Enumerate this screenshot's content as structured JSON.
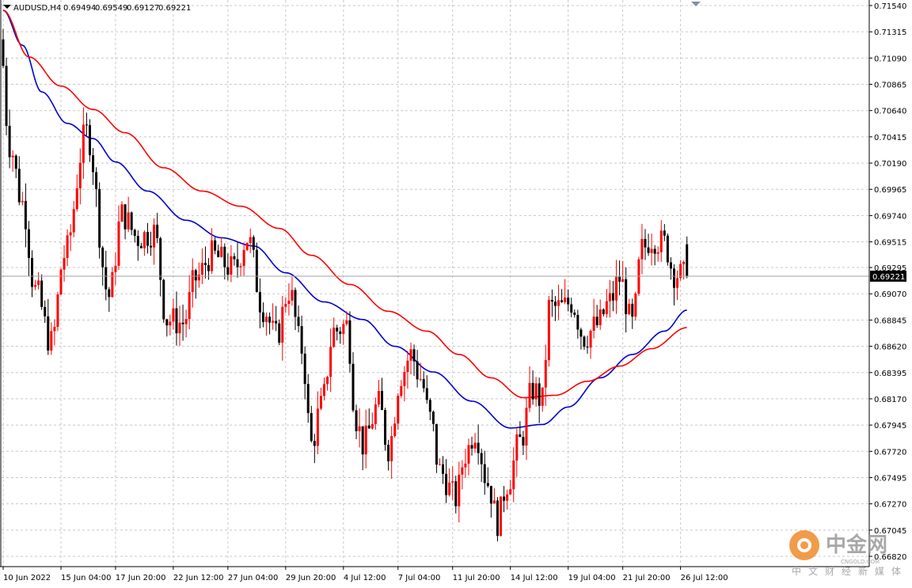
{
  "header": {
    "symbol": "AUDUSD,H4",
    "open": "0.69494",
    "high": "0.69549",
    "low": "0.69127",
    "close": "0.69221"
  },
  "watermark": {
    "cn_name": "中金网",
    "domain": "CNGOLD.COM",
    "slogan": "中文财经新媒体"
  },
  "colors": {
    "bull_candle": "#ff0000",
    "bear_candle": "#000000",
    "ma_fast": "#0000cd",
    "ma_slow": "#ff0000",
    "grid": "#c8c8c8",
    "current_price_box": "#000000"
  },
  "chart_data": {
    "type": "candlestick",
    "timeframe": "H4",
    "current_price": 0.69221,
    "ylim": [
      0.6676,
      0.7154
    ],
    "grid": true,
    "y_ticks": [
      "0.71540",
      "0.71315",
      "0.71090",
      "0.70865",
      "0.70640",
      "0.70415",
      "0.70190",
      "0.69965",
      "0.69740",
      "0.69515",
      "0.69295",
      "0.69070",
      "0.68845",
      "0.68620",
      "0.68395",
      "0.68170",
      "0.67945",
      "0.67720",
      "0.67495",
      "0.67270",
      "0.67045",
      "0.66820"
    ],
    "x_ticks": [
      {
        "bar": 0,
        "label": "10 Jun 2022"
      },
      {
        "bar": 18,
        "label": "15 Jun 04:00"
      },
      {
        "bar": 35,
        "label": "17 Jun 20:00"
      },
      {
        "bar": 53,
        "label": "22 Jun 12:00"
      },
      {
        "bar": 70,
        "label": "27 Jun 04:00"
      },
      {
        "bar": 88,
        "label": "29 Jun 20:00"
      },
      {
        "bar": 106,
        "label": "4 Jul 12:00"
      },
      {
        "bar": 123,
        "label": "7 Jul 04:00"
      },
      {
        "bar": 140,
        "label": "11 Jul 20:00"
      },
      {
        "bar": 158,
        "label": "14 Jul 12:00"
      },
      {
        "bar": 176,
        "label": "19 Jul 04:00"
      },
      {
        "bar": 193,
        "label": "21 Jul 20:00"
      },
      {
        "bar": 211,
        "label": "26 Jul 12:00"
      }
    ],
    "candle_pivots": [
      {
        "bar": 0,
        "price": 0.7125
      },
      {
        "bar": 3,
        "price": 0.7035
      },
      {
        "bar": 7,
        "price": 0.6985
      },
      {
        "bar": 11,
        "price": 0.691
      },
      {
        "bar": 16,
        "price": 0.6865
      },
      {
        "bar": 20,
        "price": 0.694
      },
      {
        "bar": 27,
        "price": 0.7045
      },
      {
        "bar": 34,
        "price": 0.6905
      },
      {
        "bar": 38,
        "price": 0.6975
      },
      {
        "bar": 43,
        "price": 0.6955
      },
      {
        "bar": 48,
        "price": 0.696
      },
      {
        "bar": 52,
        "price": 0.6885
      },
      {
        "bar": 57,
        "price": 0.6882
      },
      {
        "bar": 61,
        "price": 0.692
      },
      {
        "bar": 66,
        "price": 0.694
      },
      {
        "bar": 73,
        "price": 0.6928
      },
      {
        "bar": 77,
        "price": 0.6955
      },
      {
        "bar": 82,
        "price": 0.6895
      },
      {
        "bar": 86,
        "price": 0.687
      },
      {
        "bar": 90,
        "price": 0.691
      },
      {
        "bar": 94,
        "price": 0.686
      },
      {
        "bar": 97,
        "price": 0.6778
      },
      {
        "bar": 100,
        "price": 0.681
      },
      {
        "bar": 104,
        "price": 0.6875
      },
      {
        "bar": 108,
        "price": 0.688
      },
      {
        "bar": 111,
        "price": 0.68
      },
      {
        "bar": 113,
        "price": 0.6778
      },
      {
        "bar": 118,
        "price": 0.6812
      },
      {
        "bar": 121,
        "price": 0.6775
      },
      {
        "bar": 125,
        "price": 0.6838
      },
      {
        "bar": 128,
        "price": 0.6855
      },
      {
        "bar": 131,
        "price": 0.6835
      },
      {
        "bar": 134,
        "price": 0.68
      },
      {
        "bar": 137,
        "price": 0.6755
      },
      {
        "bar": 142,
        "price": 0.6732
      },
      {
        "bar": 145,
        "price": 0.677
      },
      {
        "bar": 148,
        "price": 0.679
      },
      {
        "bar": 152,
        "price": 0.6745
      },
      {
        "bar": 155,
        "price": 0.6712
      },
      {
        "bar": 158,
        "price": 0.6745
      },
      {
        "bar": 162,
        "price": 0.678
      },
      {
        "bar": 166,
        "price": 0.6825
      },
      {
        "bar": 169,
        "price": 0.6815
      },
      {
        "bar": 171,
        "price": 0.6895
      },
      {
        "bar": 175,
        "price": 0.6895
      },
      {
        "bar": 178,
        "price": 0.69
      },
      {
        "bar": 182,
        "price": 0.687
      },
      {
        "bar": 186,
        "price": 0.688
      },
      {
        "bar": 190,
        "price": 0.69
      },
      {
        "bar": 193,
        "price": 0.692
      },
      {
        "bar": 197,
        "price": 0.688
      },
      {
        "bar": 200,
        "price": 0.6945
      },
      {
        "bar": 203,
        "price": 0.6955
      },
      {
        "bar": 207,
        "price": 0.695
      },
      {
        "bar": 210,
        "price": 0.6925
      },
      {
        "bar": 213,
        "price": 0.6922
      }
    ],
    "series": [
      {
        "kind": "moving-average",
        "color": "#0000cd",
        "points": [
          {
            "bar": 0,
            "price": 0.715
          },
          {
            "bar": 6,
            "price": 0.712
          },
          {
            "bar": 12,
            "price": 0.708
          },
          {
            "bar": 20,
            "price": 0.7053
          },
          {
            "bar": 28,
            "price": 0.704
          },
          {
            "bar": 35,
            "price": 0.702
          },
          {
            "bar": 45,
            "price": 0.6995
          },
          {
            "bar": 57,
            "price": 0.697
          },
          {
            "bar": 68,
            "price": 0.6955
          },
          {
            "bar": 78,
            "price": 0.6948
          },
          {
            "bar": 88,
            "price": 0.6925
          },
          {
            "bar": 100,
            "price": 0.69
          },
          {
            "bar": 112,
            "price": 0.6885
          },
          {
            "bar": 122,
            "price": 0.6862
          },
          {
            "bar": 134,
            "price": 0.684
          },
          {
            "bar": 146,
            "price": 0.6815
          },
          {
            "bar": 158,
            "price": 0.6792
          },
          {
            "bar": 168,
            "price": 0.6795
          },
          {
            "bar": 176,
            "price": 0.681
          },
          {
            "bar": 186,
            "price": 0.6835
          },
          {
            "bar": 196,
            "price": 0.6855
          },
          {
            "bar": 206,
            "price": 0.6875
          },
          {
            "bar": 213,
            "price": 0.6893
          }
        ]
      },
      {
        "kind": "moving-average",
        "color": "#ff0000",
        "points": [
          {
            "bar": 0,
            "price": 0.715
          },
          {
            "bar": 8,
            "price": 0.711
          },
          {
            "bar": 18,
            "price": 0.7085
          },
          {
            "bar": 28,
            "price": 0.7065
          },
          {
            "bar": 38,
            "price": 0.7045
          },
          {
            "bar": 50,
            "price": 0.7015
          },
          {
            "bar": 62,
            "price": 0.6995
          },
          {
            "bar": 74,
            "price": 0.6982
          },
          {
            "bar": 86,
            "price": 0.6963
          },
          {
            "bar": 96,
            "price": 0.694
          },
          {
            "bar": 108,
            "price": 0.6915
          },
          {
            "bar": 120,
            "price": 0.6892
          },
          {
            "bar": 132,
            "price": 0.6875
          },
          {
            "bar": 142,
            "price": 0.6855
          },
          {
            "bar": 152,
            "price": 0.6835
          },
          {
            "bar": 162,
            "price": 0.6818
          },
          {
            "bar": 172,
            "price": 0.682
          },
          {
            "bar": 182,
            "price": 0.6832
          },
          {
            "bar": 192,
            "price": 0.6845
          },
          {
            "bar": 202,
            "price": 0.686
          },
          {
            "bar": 213,
            "price": 0.6878
          }
        ]
      }
    ]
  }
}
